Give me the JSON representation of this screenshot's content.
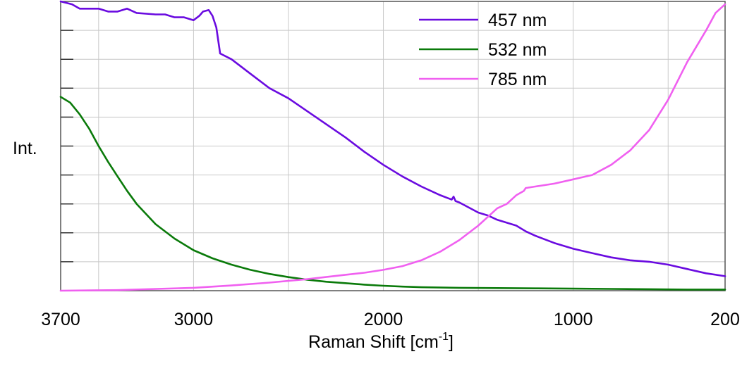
{
  "chart_data": {
    "type": "line",
    "title": "",
    "xlabel": "Raman Shift [cm",
    "xlabel_sup": "-1",
    "xlabel_suffix": "]",
    "ylabel": "Int.",
    "xlim": [
      3700,
      200
    ],
    "ylim": [
      0,
      1
    ],
    "x_reversed": true,
    "x_ticks": [
      3700,
      3000,
      2000,
      1000,
      200
    ],
    "x_tick_labels": [
      "3700",
      "3000",
      "2000",
      "1000",
      "200"
    ],
    "y_tick_labels": [],
    "grid": true,
    "legend_position": "top-right",
    "series": [
      {
        "name": "457 nm",
        "color": "#6a0be0",
        "x": [
          3700,
          3640,
          3600,
          3500,
          3450,
          3400,
          3350,
          3300,
          3200,
          3150,
          3100,
          3050,
          3000,
          2970,
          2950,
          2920,
          2900,
          2880,
          2860,
          2800,
          2700,
          2600,
          2500,
          2400,
          2300,
          2200,
          2100,
          2000,
          1900,
          1800,
          1700,
          1640,
          1630,
          1620,
          1600,
          1500,
          1450,
          1400,
          1300,
          1250,
          1200,
          1100,
          1000,
          900,
          800,
          700,
          600,
          500,
          400,
          300,
          200
        ],
        "y": [
          1.0,
          0.99,
          0.975,
          0.975,
          0.965,
          0.965,
          0.975,
          0.96,
          0.955,
          0.955,
          0.945,
          0.945,
          0.935,
          0.95,
          0.965,
          0.97,
          0.95,
          0.91,
          0.82,
          0.8,
          0.75,
          0.7,
          0.665,
          0.62,
          0.575,
          0.53,
          0.48,
          0.435,
          0.395,
          0.36,
          0.33,
          0.315,
          0.325,
          0.31,
          0.305,
          0.27,
          0.26,
          0.245,
          0.225,
          0.205,
          0.19,
          0.165,
          0.145,
          0.13,
          0.115,
          0.105,
          0.1,
          0.09,
          0.075,
          0.06,
          0.05
        ]
      },
      {
        "name": "532 nm",
        "color": "#0a7a0a",
        "x": [
          3700,
          3650,
          3600,
          3550,
          3500,
          3450,
          3400,
          3350,
          3300,
          3200,
          3100,
          3000,
          2900,
          2800,
          2700,
          2600,
          2500,
          2400,
          2300,
          2200,
          2100,
          2000,
          1900,
          1800,
          1600,
          1400,
          1200,
          1000,
          800,
          600,
          400,
          200
        ],
        "y": [
          0.67,
          0.65,
          0.61,
          0.56,
          0.5,
          0.445,
          0.395,
          0.345,
          0.3,
          0.23,
          0.18,
          0.14,
          0.112,
          0.09,
          0.072,
          0.058,
          0.047,
          0.038,
          0.031,
          0.026,
          0.021,
          0.017,
          0.014,
          0.012,
          0.01,
          0.009,
          0.008,
          0.007,
          0.006,
          0.005,
          0.004,
          0.004
        ]
      },
      {
        "name": "785 nm",
        "color": "#f060f0",
        "x": [
          3700,
          3400,
          3000,
          2800,
          2600,
          2400,
          2200,
          2100,
          2000,
          1900,
          1800,
          1700,
          1600,
          1500,
          1450,
          1400,
          1350,
          1300,
          1260,
          1250,
          1200,
          1100,
          1000,
          900,
          800,
          700,
          600,
          500,
          400,
          300,
          250,
          200
        ],
        "y": [
          0.0,
          0.002,
          0.01,
          0.018,
          0.028,
          0.04,
          0.055,
          0.062,
          0.072,
          0.085,
          0.105,
          0.135,
          0.175,
          0.225,
          0.255,
          0.285,
          0.3,
          0.33,
          0.345,
          0.355,
          0.36,
          0.37,
          0.385,
          0.4,
          0.435,
          0.485,
          0.555,
          0.66,
          0.79,
          0.9,
          0.96,
          0.99
        ]
      }
    ]
  }
}
